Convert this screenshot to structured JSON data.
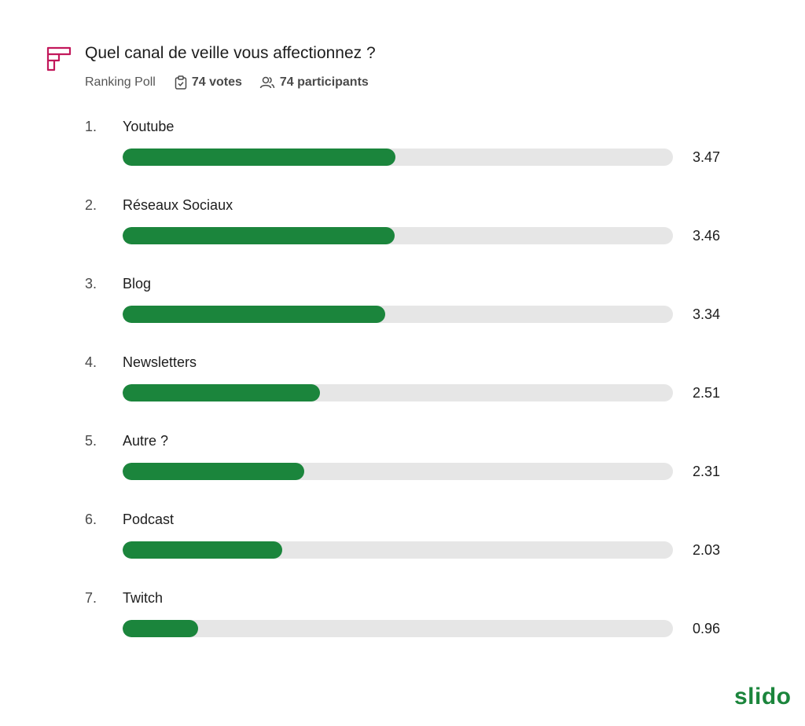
{
  "header": {
    "title": "Quel canal de veille vous affectionnez ?",
    "poll_type": "Ranking Poll",
    "votes": "74 votes",
    "participants": "74 participants"
  },
  "brand": "slido",
  "colors": {
    "bar": "#1b853c",
    "track": "#e6e6e6",
    "icon": "#c2185b"
  },
  "chart_data": {
    "type": "bar",
    "orientation": "horizontal",
    "ranks": [
      "1.",
      "2.",
      "3.",
      "4.",
      "5.",
      "6.",
      "7."
    ],
    "categories": [
      "Youtube",
      "Réseaux Sociaux",
      "Blog",
      "Newsletters",
      "Autre ?",
      "Podcast",
      "Twitch"
    ],
    "values": [
      3.47,
      3.46,
      3.34,
      2.51,
      2.31,
      2.03,
      0.96
    ],
    "value_labels": [
      "3.47",
      "3.46",
      "3.34",
      "2.51",
      "2.31",
      "2.03",
      "0.96"
    ],
    "xlim": [
      0,
      7
    ]
  }
}
